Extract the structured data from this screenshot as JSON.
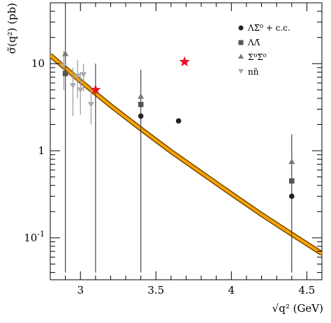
{
  "chart_data": {
    "type": "scatter",
    "title": "",
    "xlabel": "√q² (GeV)",
    "ylabel": "σ̃(q²) (pb)",
    "xscale": "linear",
    "yscale": "log",
    "xlim": [
      2.8,
      4.6
    ],
    "ylim": [
      0.033,
      50
    ],
    "x_ticks": [
      {
        "value": 3.0,
        "label": "3"
      },
      {
        "value": 3.5,
        "label": "3.5"
      },
      {
        "value": 4.0,
        "label": "4"
      },
      {
        "value": 4.5,
        "label": "4.5"
      }
    ],
    "y_ticks": [
      {
        "value": 10,
        "label": "10"
      },
      {
        "value": 1,
        "label": "1"
      },
      {
        "value": 0.1,
        "label": "10-1"
      }
    ],
    "grid": false,
    "legend_position": "top-right",
    "series": [
      {
        "name": "ΛΣ̄⁰ + c.c.",
        "marker": "circle",
        "color": "#222222",
        "points": [
          {
            "x": 3.4,
            "y": 2.5
          },
          {
            "x": 3.65,
            "y": 2.2
          },
          {
            "x": 4.4,
            "y": 0.3
          }
        ]
      },
      {
        "name": "ΛΛ̄",
        "marker": "square",
        "color": "#555555",
        "points": [
          {
            "x": 2.9,
            "y": 7.7
          },
          {
            "x": 3.4,
            "y": 3.4
          },
          {
            "x": 4.4,
            "y": 0.45
          }
        ]
      },
      {
        "name": "Σ⁰Σ̄⁰",
        "marker": "triangle-up",
        "color": "#777777",
        "points": [
          {
            "x": 2.9,
            "y": 13.0,
            "err_low": 0.04,
            "err_high": 45
          },
          {
            "x": 3.4,
            "y": 4.2,
            "err_low": 0.04,
            "err_high": 8.5
          },
          {
            "x": 4.4,
            "y": 0.75,
            "err_low": 0.04,
            "err_high": 1.55
          }
        ]
      },
      {
        "name": "nn̄",
        "marker": "triangle-down",
        "color": "#aaaaaa",
        "points": [
          {
            "x": 2.89,
            "y": 9.5,
            "err_low": 5.0,
            "err_high": 14
          },
          {
            "x": 2.95,
            "y": 5.6,
            "err_low": 2.5,
            "err_high": 9
          },
          {
            "x": 2.98,
            "y": 7.2,
            "err_low": 4.0,
            "err_high": 11
          },
          {
            "x": 3.0,
            "y": 5.0,
            "err_low": 2.6,
            "err_high": 8
          },
          {
            "x": 3.02,
            "y": 7.5,
            "err_low": 4.8,
            "err_high": 10
          },
          {
            "x": 3.07,
            "y": 3.4,
            "err_low": 2.0,
            "err_high": 5.5
          }
        ]
      },
      {
        "marker": "star",
        "color": "#e8102a",
        "points": [
          {
            "x": 3.1,
            "y": 5.0,
            "err_low": 0.04,
            "err_high": 10.0
          },
          {
            "x": 3.69,
            "y": 10.5
          }
        ]
      }
    ],
    "fit_curve": {
      "color": "#f5a300",
      "edge_color": "#7a4a00",
      "points": [
        {
          "x": 2.8,
          "y": 12.5
        },
        {
          "x": 3.0,
          "y": 6.3
        },
        {
          "x": 3.2,
          "y": 3.3
        },
        {
          "x": 3.4,
          "y": 1.78
        },
        {
          "x": 3.6,
          "y": 0.98
        },
        {
          "x": 3.8,
          "y": 0.56
        },
        {
          "x": 4.0,
          "y": 0.32
        },
        {
          "x": 4.2,
          "y": 0.185
        },
        {
          "x": 4.4,
          "y": 0.11
        },
        {
          "x": 4.6,
          "y": 0.066
        }
      ]
    }
  }
}
